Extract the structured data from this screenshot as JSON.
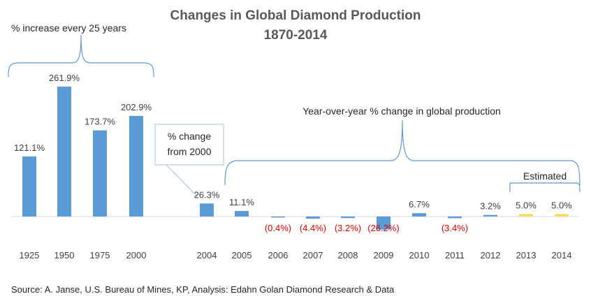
{
  "chart_data": {
    "type": "bar",
    "title": "Changes in Global Diamond Production",
    "subtitle": "1870-2014",
    "categories": [
      "1925",
      "1950",
      "1975",
      "2000",
      "2004",
      "2005",
      "2006",
      "2007",
      "2008",
      "2009",
      "2010",
      "2011",
      "2012",
      "2013",
      "2014"
    ],
    "values": [
      121.1,
      261.9,
      173.7,
      202.9,
      26.3,
      11.1,
      -0.4,
      -4.4,
      -3.2,
      -26.2,
      6.7,
      -3.4,
      3.2,
      5.0,
      5.0
    ],
    "value_labels": [
      "121.1%",
      "261.9%",
      "173.7%",
      "202.9%",
      "26.3%",
      "11.1%",
      "(0.4%)",
      "(4.4%)",
      "(3.2%)",
      "(26.2%)",
      "6.7%",
      "(3.4%)",
      "3.2%",
      "5.0%",
      "5.0%"
    ],
    "estimated": [
      false,
      false,
      false,
      false,
      false,
      false,
      false,
      false,
      false,
      false,
      false,
      false,
      false,
      true,
      true
    ],
    "colors": {
      "bar": "#5b9bd5",
      "estimated_bar": "#ffd966",
      "negative_label": "#e00000",
      "brace": "#5b9bd5",
      "title": "#595959"
    },
    "grid": false,
    "legend": "none",
    "annotations": {
      "every_25_years": "% increase every 25 years",
      "year_over_year": "Year-over-year % change in global production",
      "change_from_2000": "% change",
      "change_from_2000_line2": "from 2000",
      "estimated": "Estimated"
    },
    "source": "Source: A. Janse, U.S. Bureau of Mines, KP, Analysis: Edahn Golan Diamond Research & Data"
  }
}
